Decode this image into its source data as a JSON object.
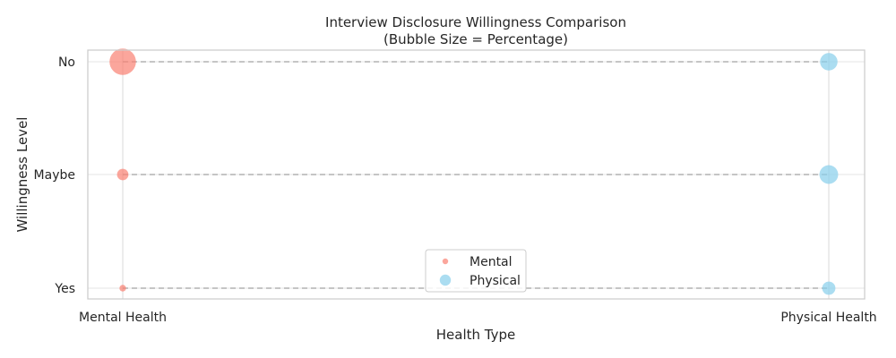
{
  "chart_data": {
    "type": "scatter",
    "title": "Interview Disclosure Willingness Comparison",
    "subtitle": "(Bubble Size = Percentage)",
    "xlabel": "Health Type",
    "ylabel": "Willingness Level",
    "categories": [
      "Mental Health",
      "Physical Health"
    ],
    "y_levels": [
      "Yes",
      "Maybe",
      "No"
    ],
    "grid": true,
    "legend_position": "bottom-center",
    "series": [
      {
        "name": "Mental",
        "color": "#fa8072",
        "points": [
          {
            "x": "Mental Health",
            "y": "No",
            "size": 80
          },
          {
            "x": "Mental Health",
            "y": "Maybe",
            "size": 15
          },
          {
            "x": "Mental Health",
            "y": "Yes",
            "size": 5
          }
        ]
      },
      {
        "name": "Physical",
        "color": "#87ceeb",
        "points": [
          {
            "x": "Physical Health",
            "y": "No",
            "size": 35
          },
          {
            "x": "Physical Health",
            "y": "Maybe",
            "size": 40
          },
          {
            "x": "Physical Health",
            "y": "Yes",
            "size": 20
          }
        ]
      }
    ]
  }
}
